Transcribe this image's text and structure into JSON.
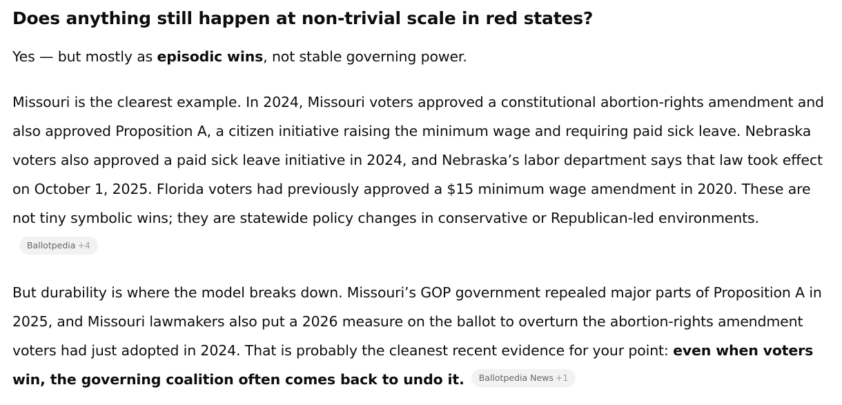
{
  "heading": "Does anything still happen at non-trivial scale in red states?",
  "lead": {
    "prefix": "Yes — but mostly as ",
    "emphasis": "episodic wins",
    "suffix": ", not stable governing power."
  },
  "paragraph1": {
    "text": "Missouri is the clearest example. In 2024, Missouri voters approved a constitutional abortion-rights amendment and also approved Proposition A, a citizen initiative raising the minimum wage and requiring paid sick leave. Nebraska voters also approved a paid sick leave initiative in 2024, and Nebraska’s labor department says that law took effect on October 1, 2025. Florida voters had previously approved a $15 minimum wage amendment in 2020. These are not tiny symbolic wins; they are statewide policy changes in conservative or Republican-led environments.",
    "citation": {
      "source": "Ballotpedia",
      "more": "+4"
    }
  },
  "paragraph2": {
    "text": "But durability is where the model breaks down. Missouri’s GOP government repealed major parts of Proposition A in 2025, and Missouri lawmakers also put a 2026 measure on the ballot to overturn the abortion-rights amendment voters had just adopted in 2024. That is probably the cleanest recent evidence for your point: ",
    "emphasis": "even when voters win, the governing coalition often comes back to undo it.",
    "citation": {
      "source": "Ballotpedia News",
      "more": "+1"
    }
  }
}
